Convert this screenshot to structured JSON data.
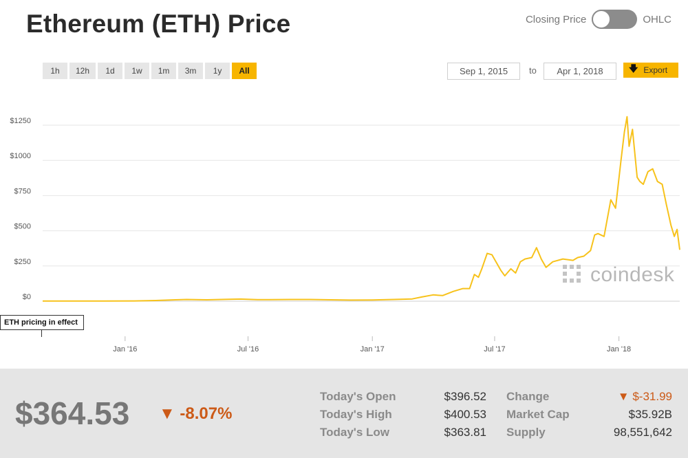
{
  "header": {
    "title": "Ethereum (ETH) Price",
    "toggle_left": "Closing Price",
    "toggle_right": "OHLC"
  },
  "ranges": [
    {
      "label": "1h",
      "active": false
    },
    {
      "label": "12h",
      "active": false
    },
    {
      "label": "1d",
      "active": false
    },
    {
      "label": "1w",
      "active": false
    },
    {
      "label": "1m",
      "active": false
    },
    {
      "label": "3m",
      "active": false
    },
    {
      "label": "1y",
      "active": false
    },
    {
      "label": "All",
      "active": true
    }
  ],
  "dates": {
    "from": "Sep 1, 2015",
    "to_label": "to",
    "to": "Apr 1, 2018"
  },
  "export_label": "Export",
  "watermark": "coindesk",
  "annotation": "ETH pricing in effect",
  "colors": {
    "line": "#f7c21b",
    "accent": "#f7b500",
    "down": "#cc5a17"
  },
  "chart_data": {
    "type": "line",
    "title": "Ethereum (ETH) Price",
    "xlabel": "",
    "ylabel": "",
    "ylim": [
      0,
      1350
    ],
    "xlim": [
      "2015-09-01",
      "2018-04-01"
    ],
    "y_ticks": [
      {
        "value": 0,
        "label": "$0"
      },
      {
        "value": 250,
        "label": "$250"
      },
      {
        "value": 500,
        "label": "$500"
      },
      {
        "value": 750,
        "label": "$750"
      },
      {
        "value": 1000,
        "label": "$1000"
      },
      {
        "value": 1250,
        "label": "$1250"
      }
    ],
    "x_ticks": [
      {
        "date": "2016-01-01",
        "label": "Jan '16"
      },
      {
        "date": "2016-07-01",
        "label": "Jul '16"
      },
      {
        "date": "2017-01-01",
        "label": "Jan '17"
      },
      {
        "date": "2017-07-01",
        "label": "Jul '17"
      },
      {
        "date": "2018-01-01",
        "label": "Jan '18"
      }
    ],
    "grid": true,
    "legend": "none",
    "series": [
      {
        "x": [
          "2015-09-01",
          "2015-10-15",
          "2015-12-01",
          "2016-01-15",
          "2016-02-15",
          "2016-03-15",
          "2016-04-01",
          "2016-05-01",
          "2016-06-01",
          "2016-06-20",
          "2016-07-15",
          "2016-08-01",
          "2016-09-01",
          "2016-10-01",
          "2016-11-01",
          "2016-12-01",
          "2017-01-01",
          "2017-02-01",
          "2017-03-01",
          "2017-03-15",
          "2017-04-01",
          "2017-04-15",
          "2017-05-01",
          "2017-05-15",
          "2017-05-25",
          "2017-06-01",
          "2017-06-07",
          "2017-06-12",
          "2017-06-20",
          "2017-06-27",
          "2017-07-03",
          "2017-07-10",
          "2017-07-16",
          "2017-07-25",
          "2017-08-01",
          "2017-08-08",
          "2017-08-15",
          "2017-08-25",
          "2017-09-01",
          "2017-09-08",
          "2017-09-15",
          "2017-09-25",
          "2017-10-10",
          "2017-10-25",
          "2017-11-01",
          "2017-11-10",
          "2017-11-20",
          "2017-11-26",
          "2017-12-01",
          "2017-12-10",
          "2017-12-20",
          "2017-12-27",
          "2018-01-04",
          "2018-01-09",
          "2018-01-13",
          "2018-01-16",
          "2018-01-21",
          "2018-01-28",
          "2018-02-01",
          "2018-02-06",
          "2018-02-13",
          "2018-02-20",
          "2018-02-27",
          "2018-03-06",
          "2018-03-12",
          "2018-03-19",
          "2018-03-24",
          "2018-03-28",
          "2018-04-01"
        ],
        "y": [
          1,
          1,
          1,
          2,
          5,
          10,
          12,
          10,
          13,
          15,
          11,
          11,
          12,
          12,
          10,
          8,
          9,
          12,
          16,
          30,
          45,
          40,
          70,
          90,
          90,
          190,
          170,
          230,
          340,
          330,
          280,
          220,
          180,
          230,
          200,
          280,
          300,
          310,
          380,
          300,
          240,
          280,
          300,
          290,
          310,
          320,
          360,
          470,
          480,
          460,
          720,
          660,
          1000,
          1200,
          1310,
          1100,
          1220,
          880,
          850,
          830,
          920,
          940,
          850,
          830,
          690,
          540,
          460,
          510,
          364.53
        ]
      }
    ]
  },
  "footer": {
    "price": "$364.53",
    "change_pct": "▼ -8.07%",
    "stats_left": [
      {
        "label": "Today's Open",
        "value": "$396.52"
      },
      {
        "label": "Today's High",
        "value": "$400.53"
      },
      {
        "label": "Today's Low",
        "value": "$363.81"
      }
    ],
    "stats_right": [
      {
        "label": "Change",
        "value": "▼ $-31.99"
      },
      {
        "label": "Market Cap",
        "value": "$35.92B"
      },
      {
        "label": "Supply",
        "value": "98,551,642"
      }
    ]
  }
}
